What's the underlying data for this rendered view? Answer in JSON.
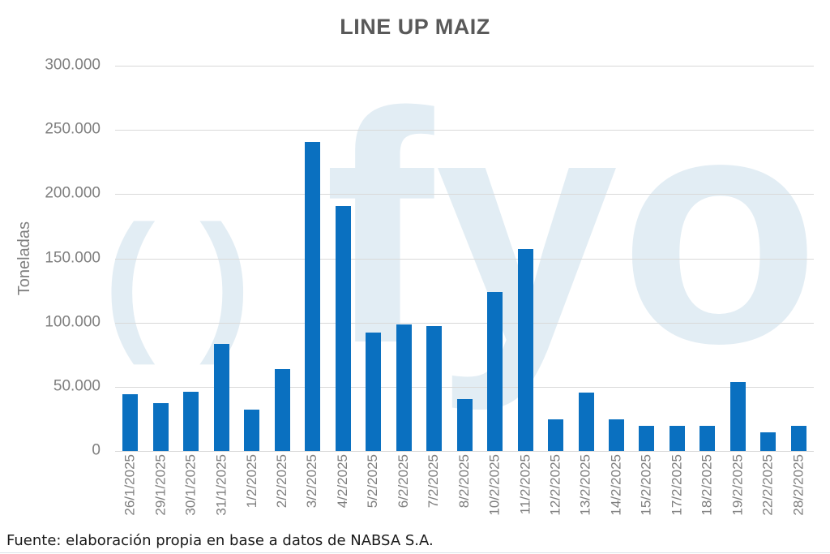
{
  "chart_data": {
    "type": "bar",
    "title": "LINE UP MAIZ",
    "ylabel": "Toneladas",
    "xlabel": "",
    "categories": [
      "26/1/2025",
      "29/1/2025",
      "30/1/2025",
      "31/1/2025",
      "1/2/2025",
      "2/2/2025",
      "3/2/2025",
      "4/2/2025",
      "5/2/2025",
      "6/2/2025",
      "7/2/2025",
      "8/2/2025",
      "10/2/2025",
      "11/2/2025",
      "12/2/2025",
      "13/2/2025",
      "14/2/2025",
      "15/2/2025",
      "17/2/2025",
      "18/2/2025",
      "19/2/2025",
      "22/2/2025",
      "28/2/2025"
    ],
    "values": [
      44500,
      37000,
      46000,
      83500,
      32000,
      64000,
      240500,
      190500,
      92500,
      98500,
      97500,
      40500,
      124000,
      157000,
      24500,
      45500,
      24500,
      19500,
      19500,
      19500,
      53500,
      14500,
      19500
    ],
    "ylim": [
      0,
      300000
    ],
    "ytick_labels": [
      "0",
      "50.000",
      "100.000",
      "150.000",
      "200.000",
      "250.000",
      "300.000"
    ],
    "grid": true,
    "legend": false,
    "bar_color": "#0A70C0",
    "gridline_color": "#D9D9D9",
    "axis_label_color": "#7F7F7F",
    "title_color": "#595959"
  },
  "watermark": {
    "parens": "()",
    "text": "fyo",
    "color": "#E2EDF4"
  },
  "footer": {
    "source": "Fuente: elaboración propia en base a datos de NABSA S.A."
  }
}
